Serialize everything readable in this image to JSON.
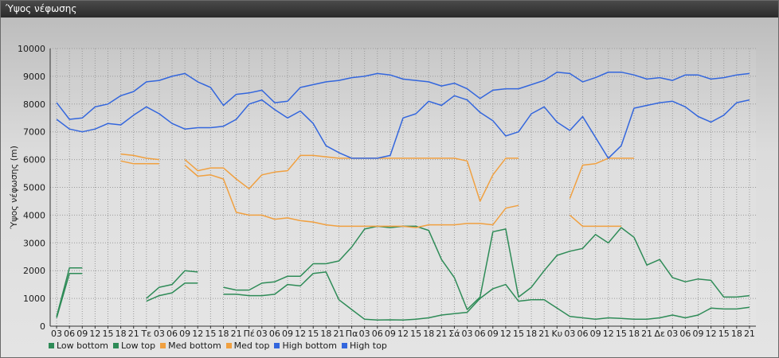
{
  "window": {
    "title": "Ύψος νέφωσης"
  },
  "chart_data": {
    "type": "line",
    "ylabel": "Ύψος νέφωσης (m)",
    "xlabel": "",
    "ylim": [
      0,
      10000
    ],
    "yticks": [
      0,
      1000,
      2000,
      3000,
      4000,
      5000,
      6000,
      7000,
      8000,
      9000,
      10000
    ],
    "grid": true,
    "legend_position": "bottom-left",
    "categories": [
      "03",
      "06",
      "09",
      "12",
      "15",
      "18",
      "21",
      "Τε",
      "03",
      "06",
      "09",
      "12",
      "15",
      "18",
      "21",
      "Πέ",
      "03",
      "06",
      "09",
      "12",
      "15",
      "18",
      "21",
      "Πα",
      "03",
      "06",
      "09",
      "12",
      "15",
      "18",
      "21",
      "Σά",
      "03",
      "06",
      "09",
      "12",
      "15",
      "18",
      "21",
      "Κυ",
      "03",
      "06",
      "09",
      "12",
      "15",
      "18",
      "21",
      "Δε",
      "03",
      "06",
      "09",
      "12",
      "15",
      "18",
      "21"
    ],
    "series": [
      {
        "name": "Low bottom",
        "color": "#2e8b57",
        "values": [
          300,
          1900,
          1900,
          null,
          null,
          null,
          null,
          900,
          1100,
          1200,
          1550,
          1550,
          null,
          1150,
          1150,
          1100,
          1100,
          1150,
          1500,
          1450,
          1900,
          1950,
          950,
          600,
          250,
          220,
          230,
          220,
          250,
          300,
          400,
          450,
          500,
          1000,
          1350,
          1500,
          900,
          950,
          950,
          650,
          350,
          300,
          250,
          300,
          280,
          250,
          250,
          300,
          400,
          300,
          400,
          650,
          620,
          620,
          680
        ]
      },
      {
        "name": "Low top",
        "color": "#2e8b57",
        "values": [
          350,
          2100,
          2100,
          null,
          null,
          null,
          null,
          1000,
          1400,
          1500,
          2000,
          1950,
          null,
          1400,
          1300,
          1300,
          1550,
          1600,
          1800,
          1800,
          2250,
          2250,
          2350,
          2850,
          3500,
          3600,
          3550,
          3600,
          3600,
          3450,
          2400,
          1750,
          600,
          1050,
          3400,
          3500,
          1050,
          1400,
          2000,
          2550,
          2700,
          2800,
          3300,
          3000,
          3550,
          3200,
          2200,
          2400,
          1750,
          1600,
          1700,
          1650,
          1050,
          1050,
          1100
        ]
      },
      {
        "name": "Med bottom",
        "color": "#f0a040",
        "values": [
          null,
          null,
          null,
          null,
          null,
          5950,
          5850,
          5850,
          5850,
          null,
          5800,
          5400,
          5450,
          5300,
          4100,
          4000,
          4000,
          3850,
          3900,
          3800,
          3750,
          3650,
          3600,
          3600,
          3600,
          3600,
          3600,
          3600,
          3550,
          3650,
          3650,
          3650,
          3700,
          3700,
          3650,
          4250,
          4350,
          null,
          null,
          null,
          4000,
          3600,
          3600,
          3600,
          3600,
          null,
          null,
          null,
          null,
          null,
          null,
          null,
          null,
          null,
          null
        ]
      },
      {
        "name": "Med top",
        "color": "#f0a040",
        "values": [
          null,
          null,
          null,
          null,
          null,
          6200,
          6150,
          6050,
          6000,
          null,
          6000,
          5600,
          5700,
          5700,
          5300,
          4950,
          5450,
          5550,
          5600,
          6150,
          6150,
          6100,
          6050,
          6050,
          6050,
          6050,
          6050,
          6050,
          6050,
          6050,
          6050,
          6050,
          5950,
          4500,
          5450,
          6050,
          6050,
          null,
          null,
          null,
          4600,
          5800,
          5850,
          6050,
          6050,
          6050,
          null,
          null,
          null,
          null,
          null,
          null,
          null,
          null,
          null
        ]
      },
      {
        "name": "High bottom",
        "color": "#3366dd",
        "values": [
          7450,
          7100,
          7000,
          7100,
          7300,
          7250,
          7600,
          7900,
          7650,
          7300,
          7100,
          7150,
          7150,
          7200,
          7450,
          8000,
          8150,
          7800,
          7500,
          7750,
          7300,
          6500,
          6250,
          6050,
          6050,
          6050,
          6150,
          7500,
          7650,
          8100,
          7950,
          8300,
          8150,
          7700,
          7400,
          6850,
          7000,
          7650,
          7900,
          7350,
          7050,
          7550,
          6800,
          6050,
          6500,
          7850,
          7950,
          8050,
          8100,
          7900,
          7550,
          7350,
          7600,
          8050,
          8150
        ]
      },
      {
        "name": "High top",
        "color": "#3366dd",
        "values": [
          8050,
          7450,
          7500,
          7900,
          8000,
          8300,
          8450,
          8800,
          8850,
          9000,
          9100,
          8800,
          8600,
          7950,
          8350,
          8400,
          8500,
          8050,
          8100,
          8600,
          8700,
          8800,
          8850,
          8950,
          9000,
          9100,
          9050,
          8900,
          8850,
          8800,
          8650,
          8750,
          8550,
          8200,
          8500,
          8550,
          8550,
          8700,
          8850,
          9150,
          9100,
          8800,
          8950,
          9150,
          9150,
          9050,
          8900,
          8950,
          8850,
          9050,
          9050,
          8900,
          8950,
          9050,
          9100
        ]
      }
    ]
  }
}
